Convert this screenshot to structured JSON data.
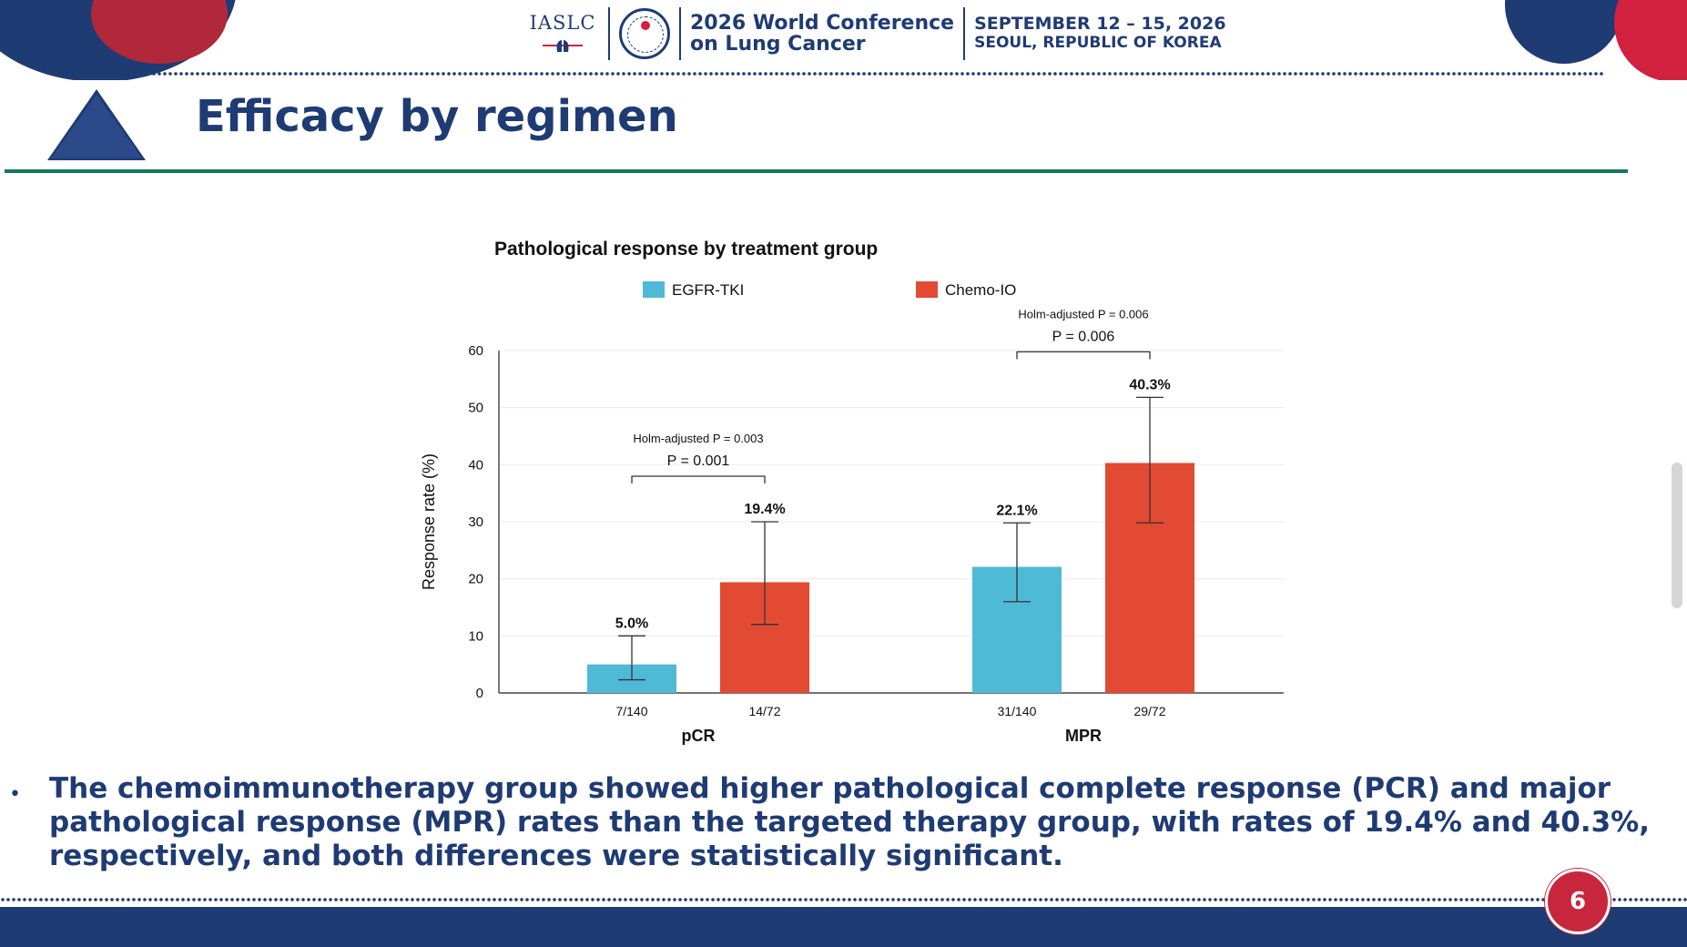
{
  "header": {
    "org": "IASLC",
    "conference_line1": "2026 World Conference",
    "conference_line2": "on Lung Cancer",
    "date": "SEPTEMBER 12 – 15, 2026",
    "location": "SEOUL, REPUBLIC OF KOREA",
    "seal_year": "2026"
  },
  "slide": {
    "title": "Efficacy by regimen",
    "bullet": "The chemoimmunotherapy group showed higher pathological complete response (PCR) and major pathological response (MPR) rates than the targeted therapy group, with rates of 19.4% and 40.3%, respectively, and both differences were statistically significant.",
    "page_number": "6"
  },
  "colors": {
    "navy": "#1f3b73",
    "egfr_tki": "#4fbad6",
    "chemo_io": "#e24a33",
    "rule_green": "#137a5e",
    "badge_red": "#c8263d"
  },
  "chart_data": {
    "type": "bar",
    "title": "Pathological response by treatment group",
    "ylabel": "Response rate (%)",
    "ylim": [
      0,
      60
    ],
    "yticks": [
      0,
      10,
      20,
      30,
      40,
      50,
      60
    ],
    "grid": true,
    "legend_position": "top",
    "groups": [
      "pCR",
      "MPR"
    ],
    "series": [
      {
        "name": "EGFR-TKI",
        "color": "#4fbad6",
        "values": [
          5.0,
          22.1
        ],
        "labels": [
          "5.0%",
          "22.1%"
        ],
        "error_low": [
          2.3,
          16.0
        ],
        "error_high": [
          10.0,
          29.8
        ],
        "counts": [
          "7/140",
          "31/140"
        ]
      },
      {
        "name": "Chemo-IO",
        "color": "#e24a33",
        "values": [
          19.4,
          40.3
        ],
        "labels": [
          "19.4%",
          "40.3%"
        ],
        "error_low": [
          12.0,
          29.8
        ],
        "error_high": [
          30.0,
          51.8
        ],
        "counts": [
          "14/72",
          "29/72"
        ]
      }
    ],
    "annotations": [
      {
        "group": "pCR",
        "p_value": "P = 0.001",
        "holm": "Holm-adjusted P = 0.003"
      },
      {
        "group": "MPR",
        "p_value": "P = 0.006",
        "holm": "Holm-adjusted P = 0.006"
      }
    ]
  }
}
